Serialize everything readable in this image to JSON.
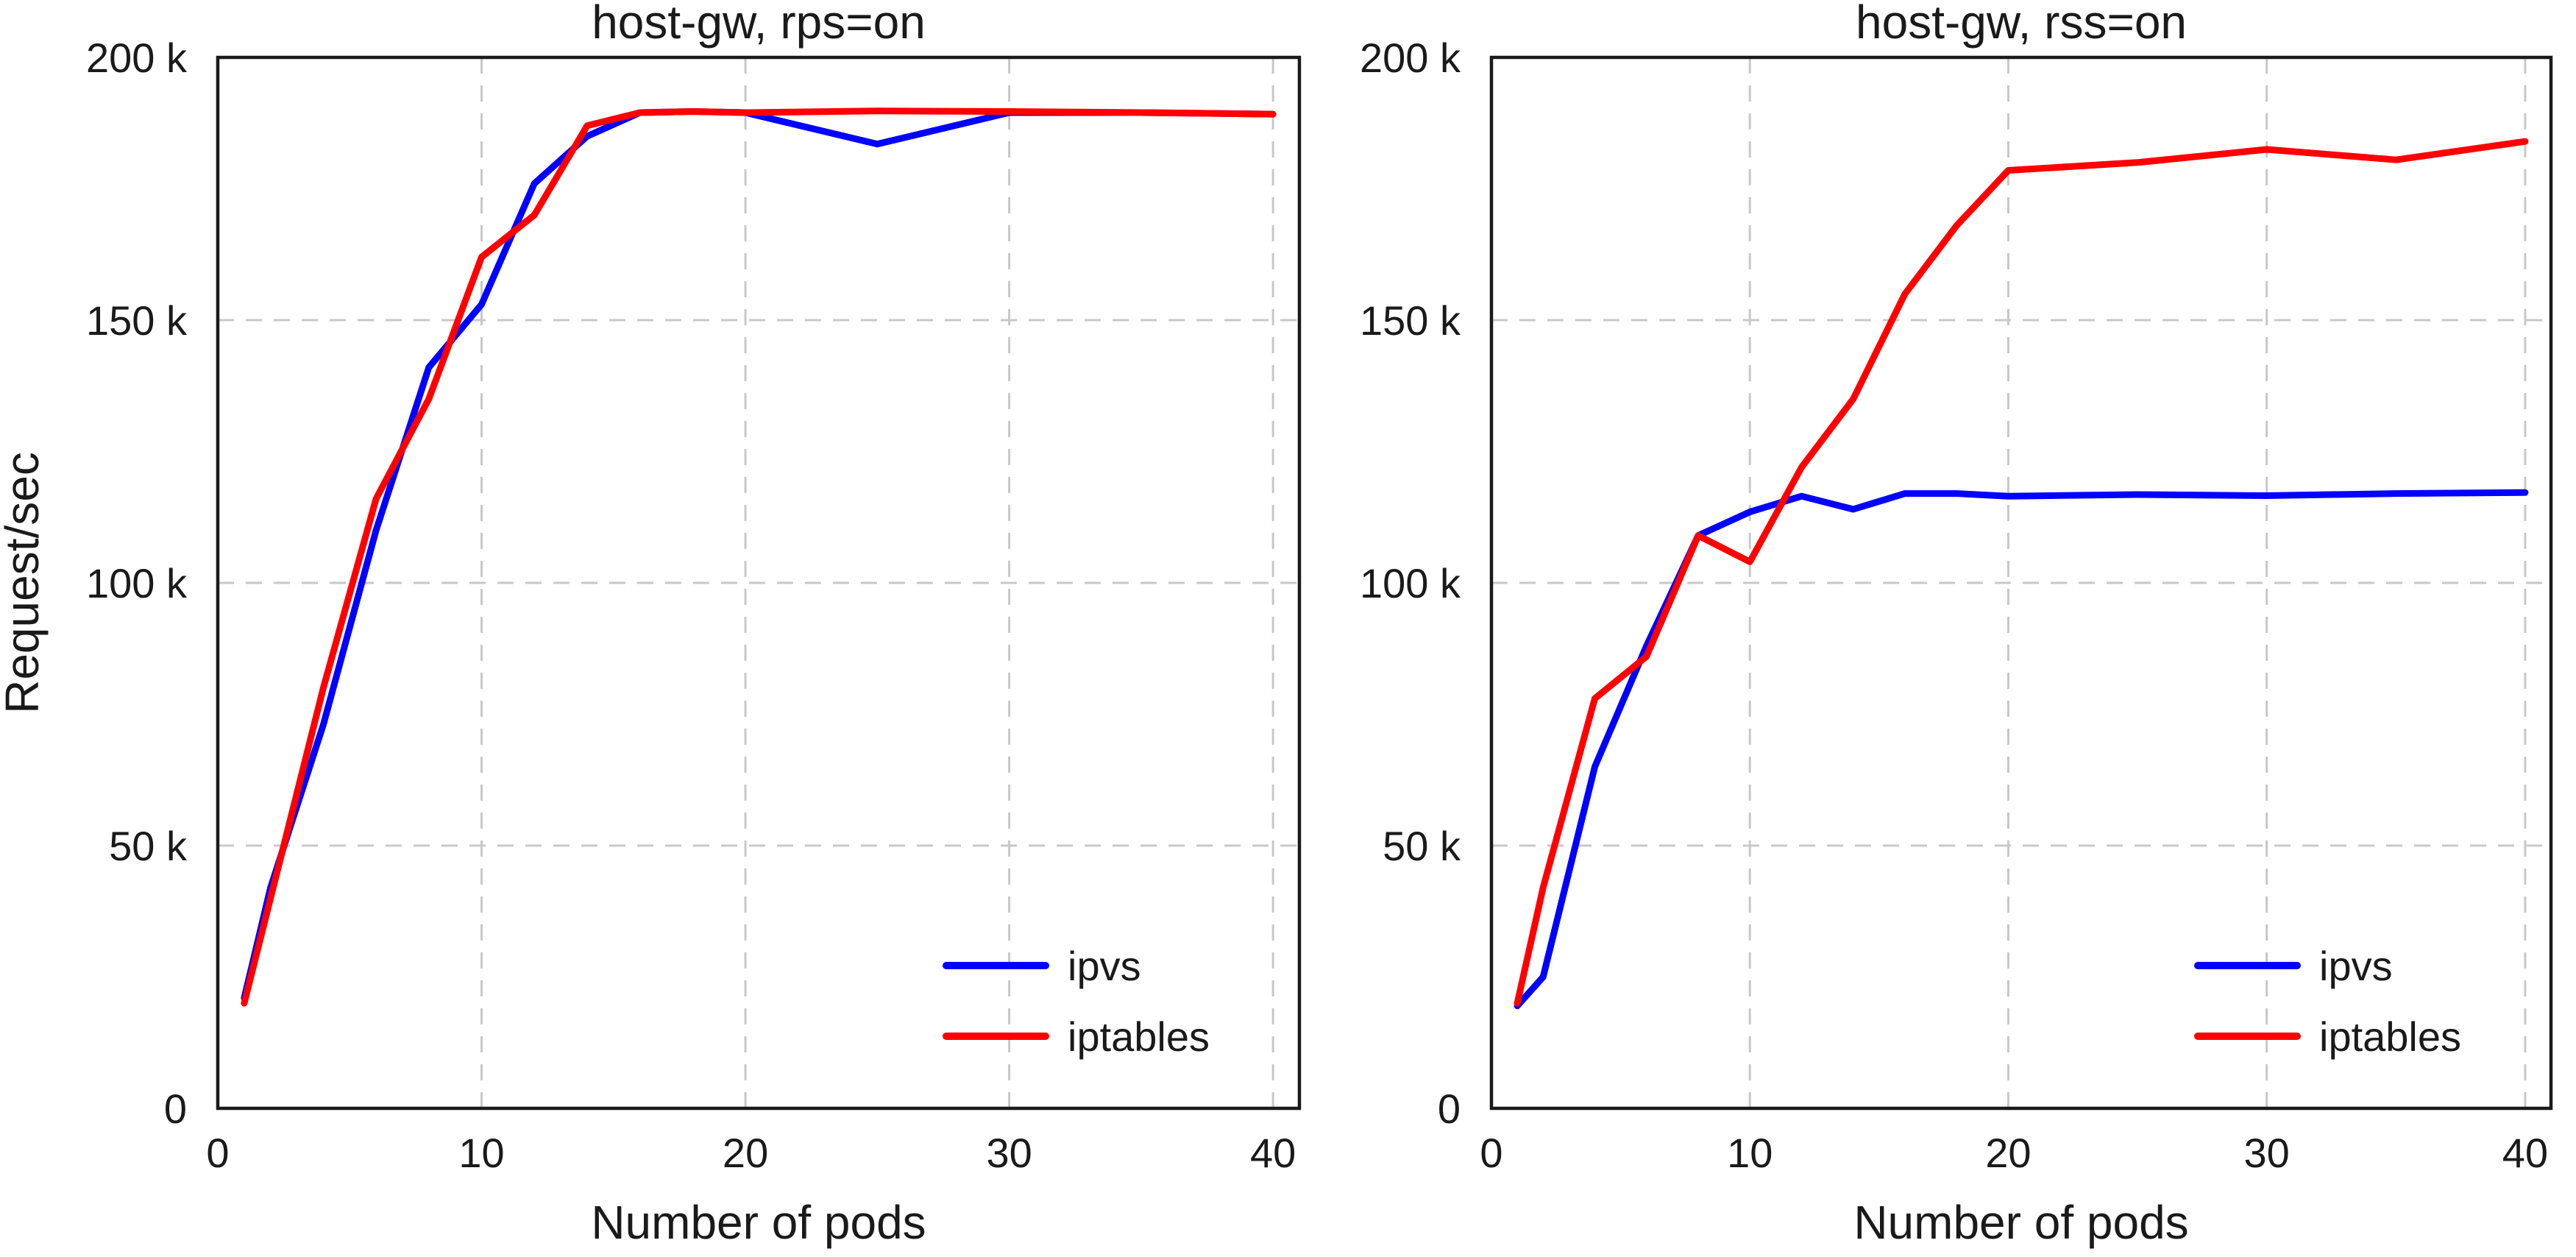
{
  "chart_data": [
    {
      "type": "line",
      "title": "host-gw, rps=on",
      "xlabel": "Number of pods",
      "ylabel": "Request/sec",
      "xlim": [
        0,
        41
      ],
      "ylim": [
        0,
        200000
      ],
      "xticks": [
        0,
        10,
        20,
        30,
        40
      ],
      "xtick_labels": [
        "0",
        "10",
        "20",
        "30",
        "40"
      ],
      "yticks": [
        0,
        50000,
        100000,
        150000,
        200000
      ],
      "ytick_labels": [
        "0",
        "50 k",
        "100 k",
        "150 k",
        "200 k"
      ],
      "grid": true,
      "legend_position": "lower-right",
      "series": [
        {
          "name": "ipvs",
          "color": "#0000ff",
          "x": [
            1,
            2,
            4,
            6,
            8,
            10,
            12,
            14,
            16,
            18,
            20,
            25,
            30,
            35,
            40
          ],
          "y": [
            21000,
            42000,
            73000,
            110000,
            141000,
            153000,
            176000,
            185000,
            189500,
            189700,
            189500,
            183500,
            189500,
            189500,
            189200
          ]
        },
        {
          "name": "iptables",
          "color": "#ff0000",
          "x": [
            1,
            2,
            4,
            6,
            8,
            10,
            12,
            14,
            16,
            18,
            20,
            25,
            30,
            35,
            40
          ],
          "y": [
            20000,
            40000,
            80000,
            116000,
            135000,
            162000,
            170000,
            187000,
            189500,
            189700,
            189500,
            189800,
            189700,
            189500,
            189200
          ]
        }
      ]
    },
    {
      "type": "line",
      "title": "host-gw, rss=on",
      "xlabel": "Number of pods",
      "ylabel": "",
      "xlim": [
        0,
        41
      ],
      "ylim": [
        0,
        200000
      ],
      "xticks": [
        0,
        10,
        20,
        30,
        40
      ],
      "xtick_labels": [
        "0",
        "10",
        "20",
        "30",
        "40"
      ],
      "yticks": [
        0,
        50000,
        100000,
        150000,
        200000
      ],
      "ytick_labels": [
        "0",
        "50 k",
        "100 k",
        "150 k",
        "200 k"
      ],
      "grid": true,
      "legend_position": "lower-right",
      "series": [
        {
          "name": "ipvs",
          "color": "#0000ff",
          "x": [
            1,
            2,
            4,
            6,
            8,
            10,
            12,
            14,
            16,
            18,
            20,
            25,
            30,
            35,
            40
          ],
          "y": [
            19500,
            25000,
            65000,
            88000,
            109000,
            113500,
            116500,
            114000,
            117000,
            117000,
            116500,
            116800,
            116600,
            117000,
            117200
          ]
        },
        {
          "name": "iptables",
          "color": "#ff0000",
          "x": [
            1,
            2,
            4,
            6,
            8,
            10,
            12,
            14,
            16,
            18,
            20,
            25,
            30,
            35,
            40
          ],
          "y": [
            20000,
            42000,
            78000,
            86000,
            109000,
            104000,
            122000,
            135000,
            155000,
            168000,
            178500,
            180000,
            182500,
            180500,
            184000
          ]
        }
      ]
    }
  ]
}
